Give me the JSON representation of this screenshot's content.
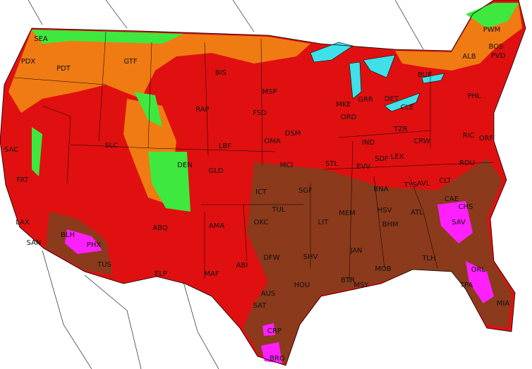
{
  "stations": [
    "SEA",
    "PDX",
    "PDT",
    "GTF",
    "BIS",
    "MSP",
    "MKE",
    "GRR",
    "ORD",
    "DET",
    "CLE",
    "BUF",
    "ALB",
    "PWM",
    "BOS",
    "PVD",
    "PHL",
    "RIC",
    "ORF",
    "RDU",
    "CAE",
    "CHS",
    "SAV",
    "ATL",
    "TYS",
    "AVL",
    "CLT",
    "BNA",
    "LEX",
    "SDF",
    "CRW",
    "TZR",
    "IND",
    "STL",
    "EVV",
    "MCI",
    "DSM",
    "OMA",
    "FSD",
    "RAP",
    "LBF",
    "DEN",
    "GLD",
    "SLC",
    "ICT",
    "SGF",
    "TUL",
    "OKC",
    "LIT",
    "MEM",
    "HSV",
    "BHM",
    "JAN",
    "SHV",
    "DFW",
    "ABI",
    "MAF",
    "ELP",
    "ABQ",
    "AMA",
    "PHX",
    "TUS",
    "BLH",
    "SAN",
    "LAX",
    "FAT",
    "SAC",
    "MOB",
    "BTR",
    "MSY",
    "TLH",
    "ORL",
    "TPA",
    "MIA",
    "HOU",
    "AUS",
    "SAT",
    "CRP",
    "BRO"
  ]
}
